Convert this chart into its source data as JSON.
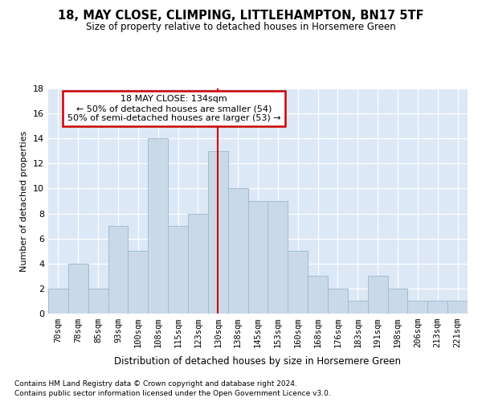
{
  "title1": "18, MAY CLOSE, CLIMPING, LITTLEHAMPTON, BN17 5TF",
  "title2": "Size of property relative to detached houses in Horsemere Green",
  "xlabel": "Distribution of detached houses by size in Horsemere Green",
  "ylabel": "Number of detached properties",
  "footnote1": "Contains HM Land Registry data © Crown copyright and database right 2024.",
  "footnote2": "Contains public sector information licensed under the Open Government Licence v3.0.",
  "annotation_line1": "18 MAY CLOSE: 134sqm",
  "annotation_line2": "← 50% of detached houses are smaller (54)",
  "annotation_line3": "50% of semi-detached houses are larger (53) →",
  "bar_labels": [
    "70sqm",
    "78sqm",
    "85sqm",
    "93sqm",
    "100sqm",
    "108sqm",
    "115sqm",
    "123sqm",
    "130sqm",
    "138sqm",
    "145sqm",
    "153sqm",
    "160sqm",
    "168sqm",
    "176sqm",
    "183sqm",
    "191sqm",
    "198sqm",
    "206sqm",
    "213sqm",
    "221sqm"
  ],
  "bar_values": [
    2,
    4,
    2,
    7,
    5,
    14,
    7,
    8,
    13,
    10,
    9,
    9,
    5,
    3,
    2,
    1,
    3,
    2,
    1,
    1,
    1
  ],
  "bar_color": "#c9d9e8",
  "bar_edgecolor": "#a0bcd0",
  "vline_index": 8,
  "vline_color": "#cc0000",
  "annotation_box_edgecolor": "#cc0000",
  "annotation_box_facecolor": "#ffffff",
  "bg_color": "#dce8f5",
  "ylim": [
    0,
    18
  ],
  "yticks": [
    0,
    2,
    4,
    6,
    8,
    10,
    12,
    14,
    16,
    18
  ],
  "title1_fontsize": 10.5,
  "title2_fontsize": 8.5,
  "xlabel_fontsize": 8.5,
  "ylabel_fontsize": 8,
  "tick_fontsize": 8,
  "xtick_fontsize": 7.5,
  "footnote_fontsize": 6.5,
  "annotation_fontsize": 8
}
